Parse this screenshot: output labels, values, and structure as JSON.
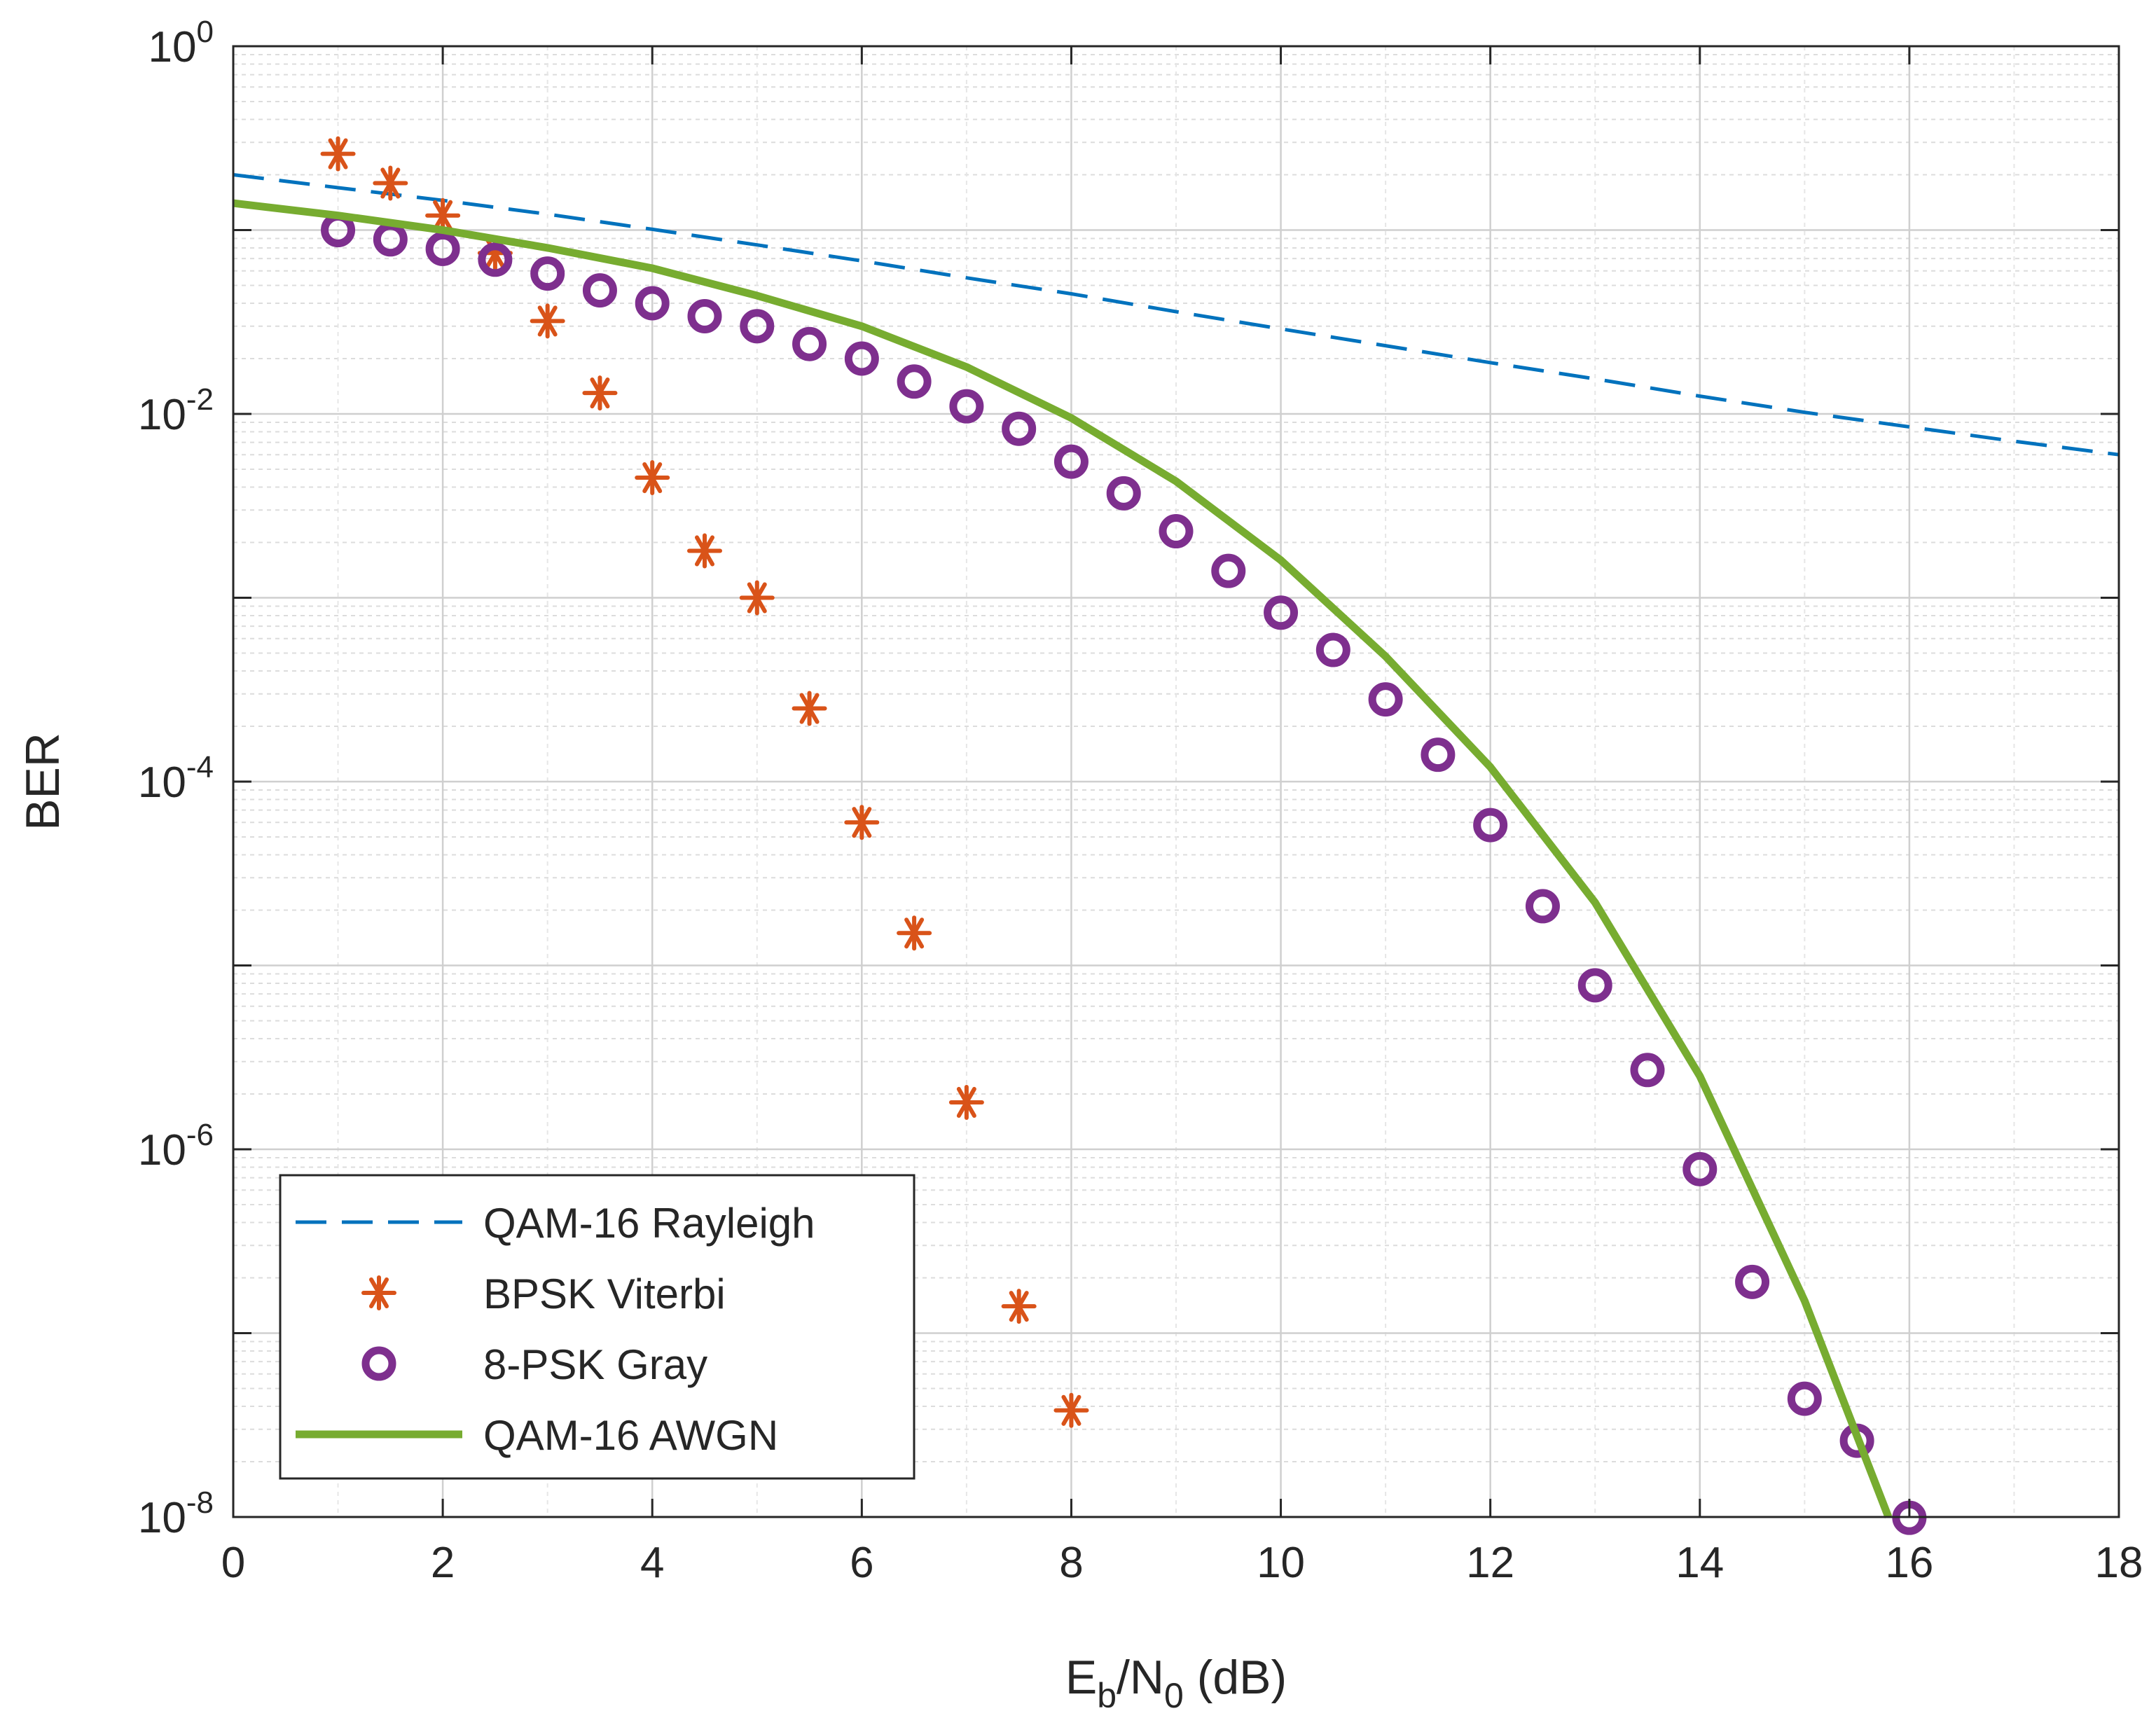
{
  "chart_data": {
    "type": "line",
    "title": "",
    "xlabel": "E",
    "xlabel_sub_b": "b",
    "xlabel_mid": "/N",
    "xlabel_sub_0": "0",
    "xlabel_suffix": " (dB)",
    "ylabel": "BER",
    "xlim": [
      0,
      18
    ],
    "ylim_log10": [
      -8,
      0
    ],
    "y_scale": "log",
    "grid": true,
    "minor_grid": true,
    "legend_position": "bottom-left",
    "x_ticks": [
      "0",
      "2",
      "4",
      "6",
      "8",
      "10",
      "12",
      "14",
      "16",
      "18"
    ],
    "y_ticks": [
      {
        "base": "10",
        "exp": "0"
      },
      {
        "base": "10",
        "exp": "-2"
      },
      {
        "base": "10",
        "exp": "-4"
      },
      {
        "base": "10",
        "exp": "-6"
      },
      {
        "base": "10",
        "exp": "-8"
      }
    ],
    "series": [
      {
        "name": "QAM-16 Rayleigh",
        "style": "dashed",
        "color": "#0072BD",
        "x": [
          0,
          1,
          2,
          3,
          4,
          5,
          6,
          7,
          8,
          9,
          10,
          11,
          12,
          13,
          14,
          15,
          16,
          17,
          18
        ],
        "y": [
          0.2,
          0.17,
          0.145,
          0.122,
          0.101,
          0.083,
          0.068,
          0.055,
          0.045,
          0.036,
          0.029,
          0.0235,
          0.019,
          0.0155,
          0.0125,
          0.0102,
          0.0085,
          0.0071,
          0.006
        ]
      },
      {
        "name": "BPSK Viterbi",
        "style": "asterisk",
        "color": "#D95319",
        "x": [
          1,
          1.5,
          2,
          2.5,
          3,
          3.5,
          4,
          4.5,
          5,
          5.5,
          6,
          6.5,
          7,
          7.5,
          8
        ],
        "y": [
          0.26,
          0.18,
          0.12,
          0.075,
          0.032,
          0.013,
          0.0045,
          0.0018,
          0.001,
          0.00025,
          6e-05,
          1.5e-05,
          1.8e-06,
          1.4e-07,
          3.8e-08
        ]
      },
      {
        "name": "8-PSK Gray",
        "style": "circle",
        "color": "#7E2F8E",
        "x": [
          1,
          1.5,
          2,
          2.5,
          3,
          3.5,
          4,
          4.5,
          5,
          5.5,
          6,
          6.5,
          7,
          7.5,
          8,
          8.5,
          9,
          9.5,
          10,
          10.5,
          11,
          11.5,
          12,
          12.5,
          13,
          13.5,
          14,
          14.5,
          15,
          15.5,
          16
        ],
        "y": [
          0.1,
          0.089,
          0.079,
          0.069,
          0.058,
          0.047,
          0.04,
          0.034,
          0.03,
          0.024,
          0.02,
          0.015,
          0.011,
          0.0083,
          0.0055,
          0.0037,
          0.0023,
          0.0014,
          0.00083,
          0.00052,
          0.00028,
          0.00014,
          5.8e-05,
          2.1e-05,
          7.8e-06,
          2.7e-06,
          7.8e-07,
          1.9e-07,
          4.4e-08,
          2.6e-08,
          9.9e-09
        ]
      },
      {
        "name": "QAM-16 AWGN",
        "style": "solid",
        "color": "#77AC30",
        "x": [
          0,
          1,
          2,
          3,
          4,
          5,
          6,
          7,
          8,
          9,
          10,
          11,
          12,
          13,
          14,
          15,
          15.8
        ],
        "y": [
          0.14,
          0.12,
          0.1,
          0.08,
          0.062,
          0.044,
          0.03,
          0.018,
          0.0095,
          0.0043,
          0.0016,
          0.00048,
          0.00012,
          2.2e-05,
          2.5e-06,
          1.5e-07,
          1e-08
        ]
      }
    ]
  }
}
